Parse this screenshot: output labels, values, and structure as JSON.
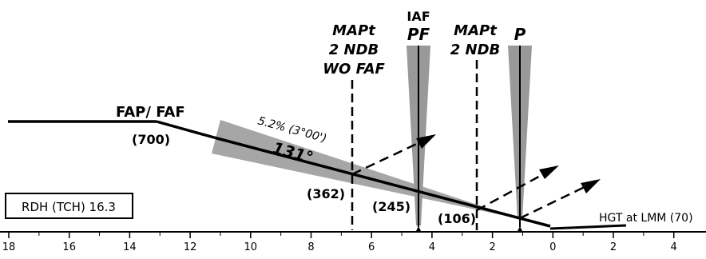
{
  "fix_labels": {
    "fap": "FAP/ FAF",
    "mapt_wo_line1": "MAPt",
    "mapt_wo_line2": "2 NDB",
    "mapt_wo_line3": "WO FAF",
    "iaf": "IAF",
    "pf": "PF",
    "mapt_line1": "MAPt",
    "mapt_line2": "2 NDB",
    "p": "P"
  },
  "altitudes": {
    "faf": "(700)",
    "mapt_wo_faf": "(362)",
    "pf": "(245)",
    "mapt": "(106)"
  },
  "glide_path": {
    "gradient": "5.2% (3°00')",
    "course": "131°"
  },
  "rdh_box": "RDH (TCH) 16.3",
  "hgt_label": "HGT at LMM (70)",
  "axis_ticks": [
    "18",
    "16",
    "14",
    "12",
    "10",
    "8",
    "6",
    "4",
    "2",
    "0",
    "2",
    "4"
  ],
  "colors": {
    "ink": "#000000",
    "cone": "#999999",
    "sector": "#a6a6a6"
  }
}
